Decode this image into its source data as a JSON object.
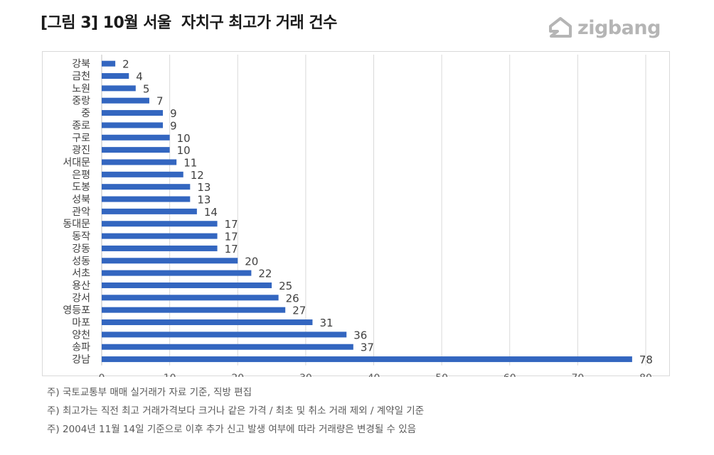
{
  "header": {
    "title": "[그림 3] 10월 서울  자치구 최고가 거래 건수",
    "brand": "zigbang"
  },
  "chart_data": {
    "type": "bar",
    "orientation": "horizontal",
    "categories": [
      "강북",
      "금천",
      "노원",
      "중랑",
      "중",
      "종로",
      "구로",
      "광진",
      "서대문",
      "은평",
      "도봉",
      "성북",
      "관악",
      "동대문",
      "동작",
      "강동",
      "성동",
      "서초",
      "용산",
      "강서",
      "영등포",
      "마포",
      "양천",
      "송파",
      "강남"
    ],
    "values": [
      2,
      4,
      5,
      7,
      9,
      9,
      10,
      10,
      11,
      12,
      13,
      13,
      14,
      17,
      17,
      17,
      20,
      22,
      25,
      26,
      27,
      31,
      36,
      37,
      78
    ],
    "xlim": [
      0,
      80
    ],
    "xticks": [
      0,
      10,
      20,
      30,
      40,
      50,
      60,
      70,
      80
    ],
    "grid": "vertical",
    "bar_color": "#3366c0",
    "data_labels": true
  },
  "notes": [
    "주) 국토교통부 매매 실거래가 자료 기준, 직방 편집",
    "주) 최고가는 직전 최고 거래가격보다 크거나 같은 가격 / 최초 및 취소 거래 제외 / 계약일 기준",
    "주) 2004년 11월 14일 기준으로 이후 추가 신고 발생 여부에 따라 거래량은 변경될 수 있음"
  ]
}
